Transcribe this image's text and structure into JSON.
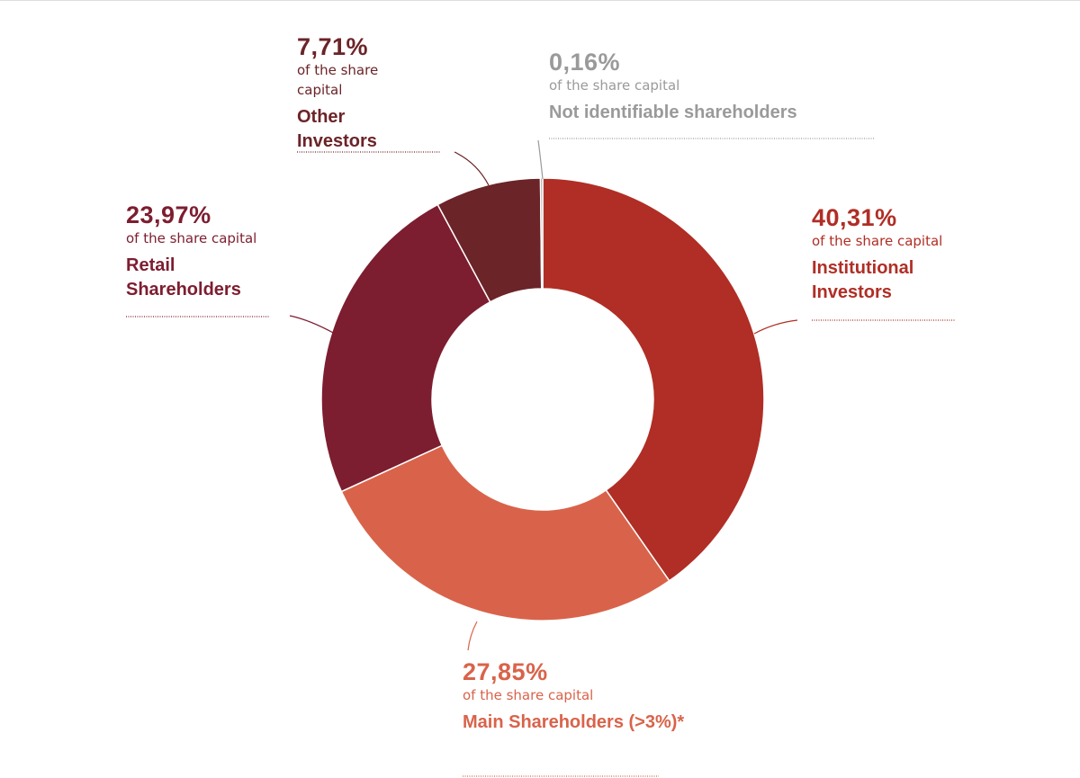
{
  "chart_data": {
    "type": "donut",
    "categories": [
      "Institutional Investors",
      "Main Shareholders (>3%)*",
      "Retail Shareholders",
      "Other Investors",
      "Not identifiable shareholders"
    ],
    "values": [
      40.31,
      27.85,
      23.97,
      7.71,
      0.16
    ],
    "value_labels": [
      "40,31%",
      "27,85%",
      "23,97%",
      "7,71%",
      "0,16%"
    ],
    "value_caption": "of the share capital",
    "colors": [
      "#b02e25",
      "#d9634a",
      "#7d1d30",
      "#6b2428",
      "#9a9a9a"
    ]
  }
}
